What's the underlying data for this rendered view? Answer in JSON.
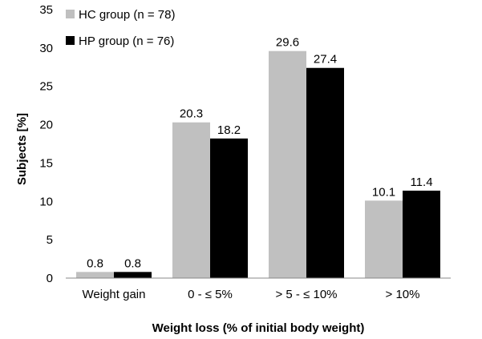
{
  "chart_data": {
    "type": "bar",
    "xlabel": "Weight loss (% of initial body weight)",
    "ylabel": "Subjects [%]",
    "categories": [
      "Weight gain",
      "0 - ≤ 5%",
      "> 5 - ≤ 10%",
      "> 10%"
    ],
    "series": [
      {
        "name": "HC group (n = 78)",
        "values": [
          0.8,
          20.3,
          29.6,
          10.1
        ],
        "color": "#c0c0c0"
      },
      {
        "name": "HP group (n = 76)",
        "values": [
          0.8,
          18.2,
          27.4,
          11.4
        ],
        "color": "#000000"
      }
    ],
    "data_labels": [
      [
        "0.8",
        "20.3",
        "29.6",
        "10.1"
      ],
      [
        "0.8",
        "18.2",
        "27.4",
        "11.4"
      ]
    ],
    "ylim": [
      0,
      35
    ],
    "yticks": [
      "0",
      "5",
      "10",
      "15",
      "20",
      "25",
      "30",
      "35"
    ],
    "grid": false,
    "legend": "top-left"
  }
}
